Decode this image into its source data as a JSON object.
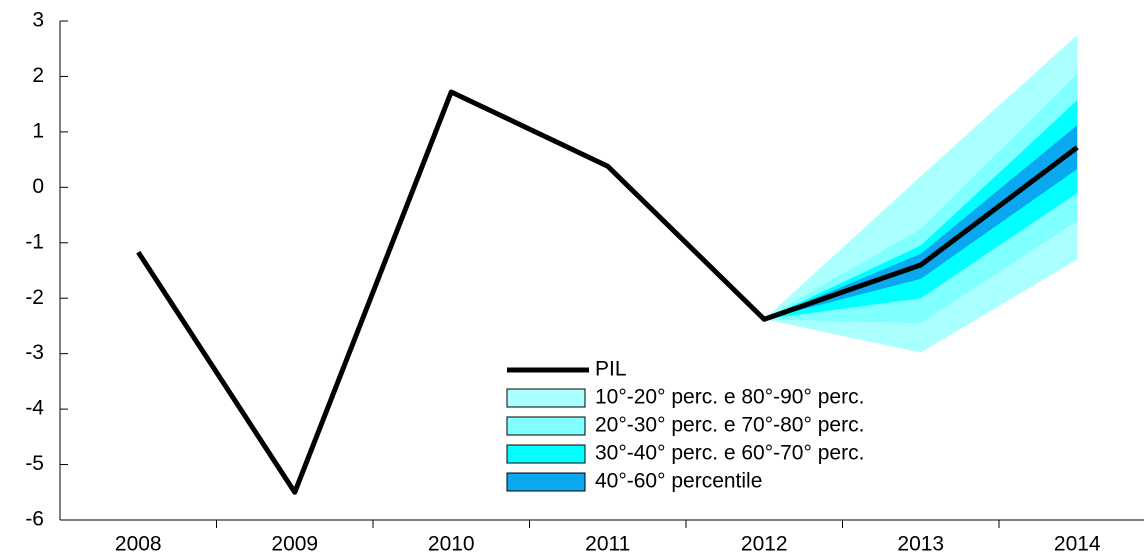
{
  "chart_data": {
    "type": "fan",
    "categories": [
      "2008",
      "2009",
      "2010",
      "2011",
      "2012",
      "2013",
      "2014"
    ],
    "series": [
      {
        "name": "PIL",
        "color": "#000000",
        "values": [
          -1.17,
          -5.5,
          1.72,
          0.38,
          -2.38,
          -1.4,
          0.72
        ]
      }
    ],
    "bands": [
      {
        "name": "10°-20° perc. e 80°-90° perc.",
        "color": "#aaffff",
        "lower": [
          null,
          null,
          null,
          null,
          -2.38,
          -2.98,
          -1.3
        ],
        "upper": [
          null,
          null,
          null,
          null,
          -2.38,
          0.2,
          2.75
        ]
      },
      {
        "name": "20°-30° perc. e 70°-80° perc.",
        "color": "#7fffff",
        "lower": [
          null,
          null,
          null,
          null,
          -2.38,
          -2.45,
          -0.6
        ],
        "upper": [
          null,
          null,
          null,
          null,
          -2.38,
          -0.75,
          2.05
        ]
      },
      {
        "name": "30°-40° perc. e 60°-70° perc.",
        "color": "#00ffff",
        "lower": [
          null,
          null,
          null,
          null,
          -2.38,
          -2.0,
          -0.1
        ],
        "upper": [
          null,
          null,
          null,
          null,
          -2.38,
          -1.05,
          1.57
        ]
      },
      {
        "name": "40°-60° percentile",
        "color": "#0aa8f0",
        "lower": [
          null,
          null,
          null,
          null,
          -2.38,
          -1.65,
          0.33
        ],
        "upper": [
          null,
          null,
          null,
          null,
          -2.38,
          -1.2,
          1.12
        ]
      }
    ],
    "ylim": [
      -6,
      3
    ],
    "yticks": [
      -6,
      -5,
      -4,
      -3,
      -2,
      -1,
      0,
      1,
      2,
      3
    ],
    "grid": false
  }
}
